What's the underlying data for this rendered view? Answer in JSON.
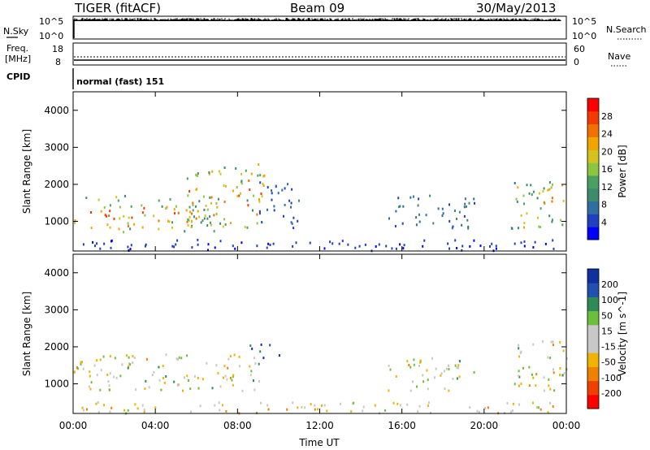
{
  "header": {
    "station": "TIGER (fitACF)",
    "beam": "Beam 09",
    "date": "30/May/2013"
  },
  "summary_panels": {
    "nsky": {
      "label": "N.Sky",
      "ticks": [
        "10^5",
        "10^0"
      ]
    },
    "nsearch": {
      "label": "N.Search",
      "ticks": [
        "10^5",
        "10^0"
      ]
    },
    "freq": {
      "label_1": "Freq.",
      "label_2": "[MHz]",
      "ticks": [
        "18",
        "8"
      ]
    },
    "nave": {
      "label": "Nave",
      "ticks": [
        "60",
        "0"
      ]
    },
    "cpid": {
      "label": "CPID",
      "value": "normal (fast) 151"
    }
  },
  "colors": {
    "power_scale": [
      "#0000ff",
      "#2040c0",
      "#2f6fa0",
      "#3d8a6f",
      "#4aa060",
      "#8cc63f",
      "#d4c21e",
      "#f0a500",
      "#f07000",
      "#f03c00",
      "#ff0000"
    ],
    "velocity_scale": [
      "#1030a0",
      "#2050b0",
      "#2e8b57",
      "#6dbf3b",
      "#c8c8c8",
      "#c8c8c8",
      "#f0b400",
      "#f08000",
      "#f04000",
      "#ff0000"
    ]
  },
  "chart_data": [
    {
      "type": "heatmap",
      "name": "Power panel",
      "xlabel": "",
      "ylabel": "Slant Range [km]",
      "xlim": [
        "00:00",
        "24:00"
      ],
      "ylim": [
        200,
        4500
      ],
      "y_ticks": [
        "1000",
        "2000",
        "3000",
        "4000"
      ],
      "colorbar": {
        "label": "Power [dB]",
        "range": [
          0,
          32
        ],
        "tick_labels": [
          "28",
          "24",
          "20",
          "16",
          "12",
          "8",
          "4"
        ]
      },
      "echo_regions": [
        {
          "t_start": 0.0,
          "t_end": 7.0,
          "range_min": 700,
          "range_max": 1700,
          "peak_power_db": 30
        },
        {
          "t_start": 5.5,
          "t_end": 9.3,
          "range_min": 800,
          "range_max": 2600,
          "peak_power_db": 30
        },
        {
          "t_start": 9.0,
          "t_end": 11.0,
          "range_min": 800,
          "range_max": 2100,
          "peak_power_db": 10
        },
        {
          "t_start": 15.3,
          "t_end": 19.5,
          "range_min": 800,
          "range_max": 1700,
          "peak_power_db": 12
        },
        {
          "t_start": 21.3,
          "t_end": 24.0,
          "range_min": 800,
          "range_max": 2200,
          "peak_power_db": 28
        },
        {
          "t_start": 0.0,
          "t_end": 24.0,
          "range_min": 200,
          "range_max": 500,
          "peak_power_db": 6
        }
      ]
    },
    {
      "type": "heatmap",
      "name": "Velocity panel",
      "xlabel": "Time UT",
      "ylabel": "Slant Range [km]",
      "xlim": [
        "00:00",
        "24:00"
      ],
      "ylim": [
        200,
        4500
      ],
      "x_ticks": [
        "00:00",
        "04:00",
        "08:00",
        "12:00",
        "16:00",
        "20:00",
        "00:00"
      ],
      "y_ticks": [
        "1000",
        "2000",
        "3000",
        "4000"
      ],
      "colorbar": {
        "label": "Velocity [m s^-1]",
        "range": [
          -250,
          250
        ],
        "tick_labels": [
          "200",
          "100",
          "50",
          "15",
          "-15",
          "-50",
          "-100",
          "-200"
        ]
      },
      "echo_regions": [
        {
          "t_start": 0.0,
          "t_end": 9.3,
          "range_min": 800,
          "range_max": 1800,
          "typical_velocity": 0
        },
        {
          "t_start": 8.5,
          "t_end": 10.0,
          "range_min": 1700,
          "range_max": 2100,
          "typical_velocity": 200
        },
        {
          "t_start": 15.3,
          "t_end": 19.5,
          "range_min": 800,
          "range_max": 1700,
          "typical_velocity": 0
        },
        {
          "t_start": 21.3,
          "t_end": 24.0,
          "range_min": 800,
          "range_max": 2200,
          "typical_velocity": 0
        },
        {
          "t_start": 0.0,
          "t_end": 24.0,
          "range_min": 200,
          "range_max": 500,
          "typical_velocity": -30
        }
      ]
    }
  ]
}
